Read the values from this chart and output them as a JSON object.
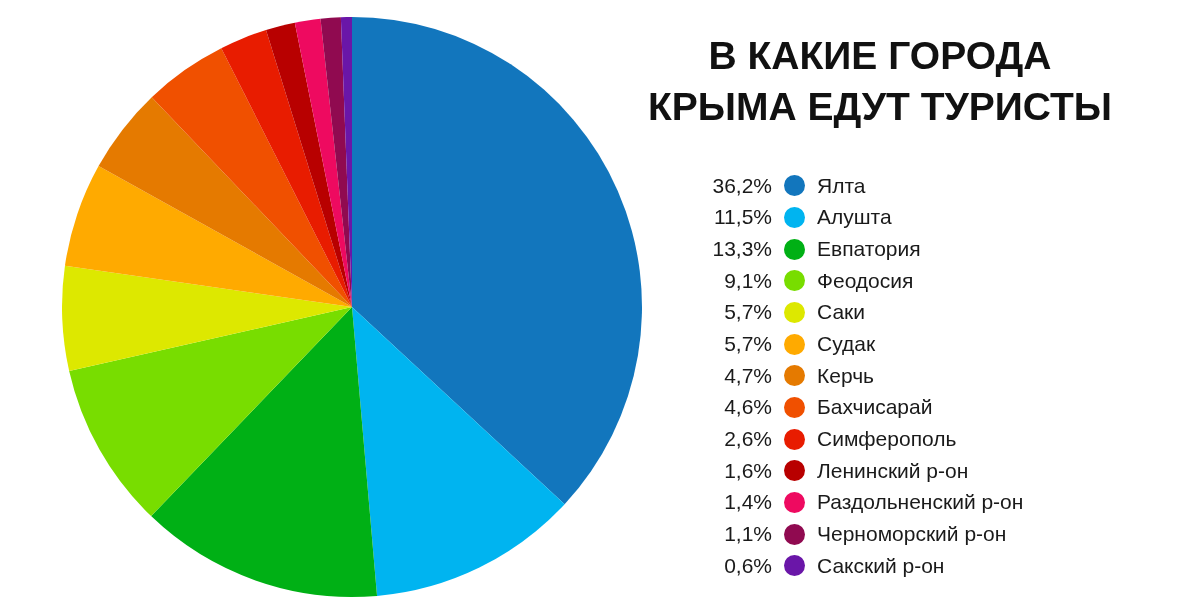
{
  "chart_data": {
    "type": "pie",
    "title": "В КАКИЕ ГОРОДА КРЫМА ЕДУТ ТУРИСТЫ",
    "categories": [
      "Ялта",
      "Алушта",
      "Евпатория",
      "Феодосия",
      "Саки",
      "Судак",
      "Керчь",
      "Бахчисарай",
      "Симферополь",
      "Ленинский р-он",
      "Раздольненский р-он",
      "Черноморский р-он",
      "Сакский р-он"
    ],
    "values": [
      36.2,
      11.5,
      13.3,
      9.1,
      5.7,
      5.7,
      4.7,
      4.6,
      2.6,
      1.6,
      1.4,
      1.1,
      0.6
    ],
    "value_labels": [
      "36,2%",
      "11,5%",
      "13,3%",
      "9,1%",
      "5,7%",
      "5,7%",
      "4,7%",
      "4,6%",
      "2,6%",
      "1,6%",
      "1,4%",
      "1,1%",
      "0,6%"
    ],
    "colors": [
      "#1276bd",
      "#00b4f0",
      "#00b015",
      "#78dd00",
      "#dde800",
      "#ffaa00",
      "#e57a00",
      "#f05000",
      "#e81c00",
      "#b80000",
      "#ee0a60",
      "#900a50",
      "#6a16a8"
    ],
    "legend": "right"
  }
}
